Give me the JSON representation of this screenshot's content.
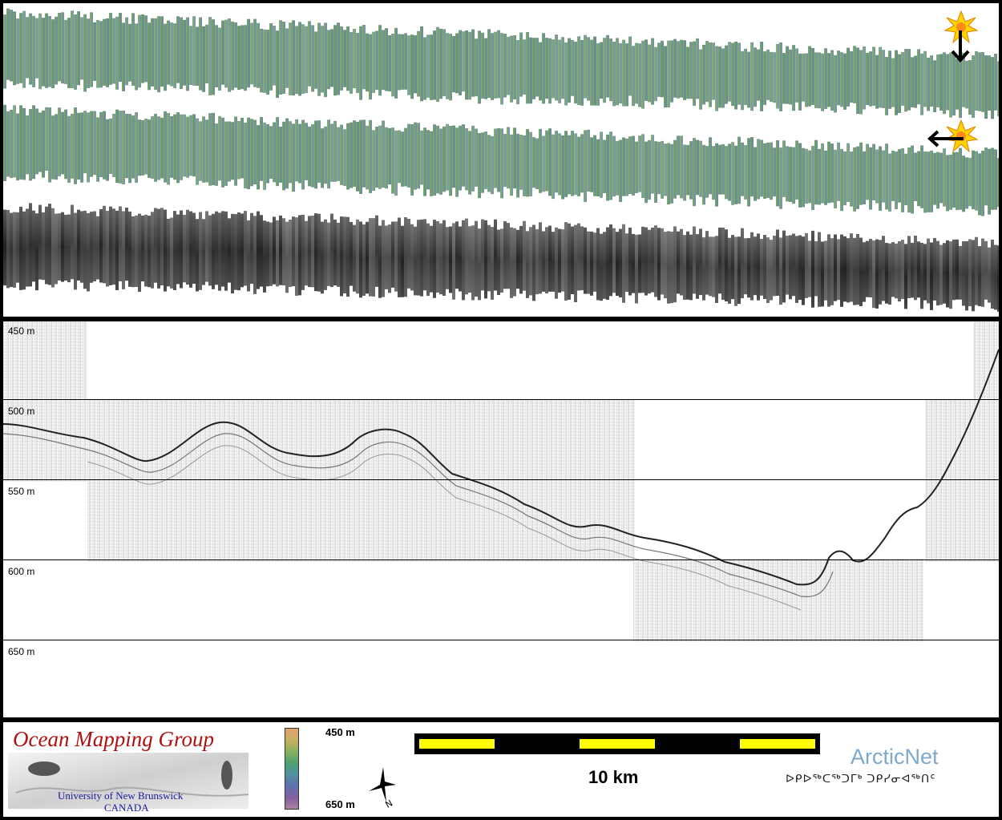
{
  "profile": {
    "depth_labels": [
      "450 m",
      "500 m",
      "550 m",
      "600 m",
      "650 m"
    ]
  },
  "legend": {
    "org_title": "Ocean Mapping Group",
    "org_line1": "University of New Brunswick",
    "org_line2": "CANADA",
    "colorbar_top": "450 m",
    "colorbar_bottom": "650 m",
    "scale_label": "10 km",
    "brand": "ArcticNet",
    "brand_syllabics": "ᐅᑭᐅᖅᑕᖅᑐᒥᒃ ᑐᑭᓯᓂᐊᖅᑎᑦ",
    "north_label": "N"
  },
  "colors": {
    "colorbar": [
      "#e0a070",
      "#c8b060",
      "#88b060",
      "#50a070",
      "#5090a0",
      "#6070b0",
      "#8060a0",
      "#b080a0"
    ],
    "scale_yellow": "#ffff00",
    "org_red": "#b01010",
    "org_blue": "#1a1a9a",
    "brand_blue": "#7fa8cf"
  }
}
